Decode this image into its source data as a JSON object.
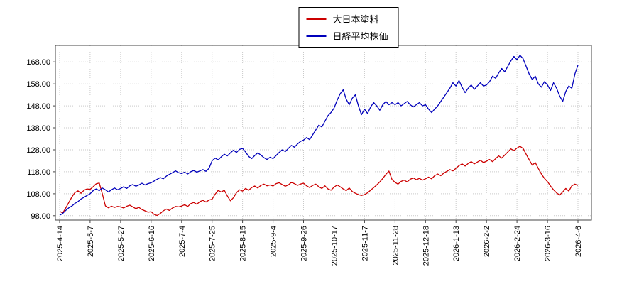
{
  "chart_data": {
    "type": "line",
    "title": "",
    "legend_position": "top-center",
    "grid": "dotted",
    "background": "#ffffff",
    "ylim": [
      96,
      175.5
    ],
    "yticks": [
      98,
      108,
      118,
      128,
      138,
      148,
      158,
      168
    ],
    "x_tick_labels": [
      "2025-4-14",
      "2025-5-7",
      "2025-5-27",
      "2025-6-16",
      "2025-7-4",
      "2025-7-25",
      "2025-8-15",
      "2025-9-4",
      "2025-9-26",
      "2025-10-17",
      "2025-11-7",
      "2025-11-28",
      "2025-12-18",
      "2026-1-13",
      "2026-2-2",
      "2026-2-24",
      "2026-3-16",
      "2026-4-6"
    ],
    "x_tick_indices": [
      0,
      10,
      20,
      30,
      40,
      50,
      60,
      70,
      80,
      90,
      100,
      110,
      120,
      130,
      140,
      150,
      160,
      170
    ],
    "series": [
      {
        "name": "大日本塗料",
        "color": "#cc0000",
        "values": [
          100.0,
          99.2,
          101.5,
          104.0,
          106.5,
          108.5,
          109.3,
          108.2,
          109.6,
          110.2,
          110.0,
          111.2,
          112.5,
          112.9,
          108.0,
          102.5,
          101.6,
          102.3,
          101.8,
          102.2,
          102.0,
          101.5,
          102.3,
          102.8,
          102.0,
          101.2,
          101.8,
          100.8,
          100.2,
          99.6,
          99.8,
          98.6,
          98.1,
          99.0,
          100.2,
          101.0,
          100.4,
          101.5,
          102.2,
          102.0,
          102.4,
          103.0,
          102.2,
          103.5,
          104.0,
          103.2,
          104.4,
          105.0,
          104.2,
          105.1,
          105.5,
          107.8,
          109.5,
          108.8,
          109.6,
          107.0,
          104.8,
          106.2,
          108.5,
          109.8,
          109.2,
          110.4,
          109.6,
          110.8,
          111.5,
          110.6,
          111.8,
          112.4,
          111.6,
          112.0,
          111.5,
          112.6,
          113.0,
          112.2,
          111.4,
          112.0,
          113.2,
          112.6,
          111.8,
          112.4,
          112.8,
          111.6,
          110.8,
          111.8,
          112.4,
          111.2,
          110.4,
          111.6,
          110.2,
          109.6,
          111.0,
          112.0,
          111.2,
          110.2,
          109.4,
          110.6,
          109.0,
          108.2,
          107.6,
          107.2,
          107.6,
          108.4,
          109.6,
          110.8,
          112.0,
          113.4,
          115.0,
          116.8,
          118.3,
          114.5,
          113.2,
          112.4,
          113.6,
          114.2,
          113.4,
          114.6,
          115.2,
          114.4,
          115.0,
          114.2,
          114.8,
          115.6,
          114.8,
          116.2,
          117.0,
          116.2,
          117.4,
          118.2,
          119.0,
          118.4,
          119.6,
          120.8,
          121.6,
          120.6,
          121.8,
          122.6,
          121.6,
          122.4,
          123.2,
          122.2,
          122.8,
          123.6,
          122.6,
          124.0,
          125.2,
          124.2,
          125.6,
          127.0,
          128.4,
          127.6,
          128.8,
          129.6,
          128.6,
          126.0,
          123.5,
          121.0,
          122.2,
          119.5,
          117.0,
          115.0,
          113.5,
          111.5,
          109.8,
          108.4,
          107.4,
          108.8,
          110.4,
          109.2,
          111.6,
          112.4,
          111.8
        ]
      },
      {
        "name": "日経平均株価",
        "color": "#0000bb",
        "values": [
          98.2,
          99.0,
          100.4,
          101.6,
          102.4,
          103.6,
          104.4,
          105.6,
          106.4,
          107.2,
          108.0,
          109.4,
          110.2,
          109.4,
          110.6,
          109.8,
          108.8,
          109.8,
          110.6,
          109.8,
          110.4,
          111.2,
          110.4,
          111.6,
          112.2,
          111.4,
          112.0,
          112.8,
          112.0,
          112.6,
          113.0,
          113.8,
          114.6,
          115.4,
          114.8,
          116.0,
          116.8,
          117.6,
          118.4,
          117.6,
          117.2,
          117.8,
          117.0,
          118.0,
          118.6,
          117.8,
          118.4,
          119.0,
          118.2,
          119.6,
          123.0,
          124.2,
          123.4,
          124.8,
          126.0,
          125.2,
          126.6,
          127.8,
          126.8,
          128.2,
          128.6,
          127.0,
          125.0,
          124.0,
          125.4,
          126.6,
          125.6,
          124.4,
          123.6,
          124.6,
          124.0,
          125.4,
          126.8,
          128.0,
          127.2,
          128.6,
          130.0,
          129.2,
          130.6,
          131.8,
          132.4,
          133.6,
          132.6,
          134.8,
          137.0,
          139.2,
          138.4,
          141.0,
          143.5,
          145.0,
          147.0,
          150.5,
          153.5,
          155.3,
          151.0,
          148.5,
          151.5,
          153.0,
          148.0,
          144.0,
          146.5,
          144.5,
          147.5,
          149.5,
          148.0,
          146.0,
          148.5,
          150.0,
          148.5,
          149.5,
          148.5,
          149.5,
          148.0,
          149.0,
          150.0,
          148.5,
          147.5,
          148.5,
          149.5,
          148.0,
          148.5,
          146.5,
          145.0,
          146.5,
          148.0,
          150.0,
          152.0,
          154.0,
          156.0,
          158.5,
          157.0,
          159.5,
          156.5,
          154.0,
          156.0,
          157.5,
          155.5,
          157.0,
          158.5,
          157.0,
          157.5,
          159.0,
          161.5,
          160.5,
          163.0,
          165.0,
          163.5,
          166.0,
          168.5,
          170.5,
          169.0,
          171.0,
          169.5,
          166.0,
          162.5,
          160.0,
          161.5,
          158.0,
          156.5,
          159.0,
          157.5,
          155.0,
          158.5,
          156.0,
          152.5,
          150.0,
          154.5,
          157.0,
          156.0,
          162.5,
          166.5
        ]
      }
    ]
  }
}
